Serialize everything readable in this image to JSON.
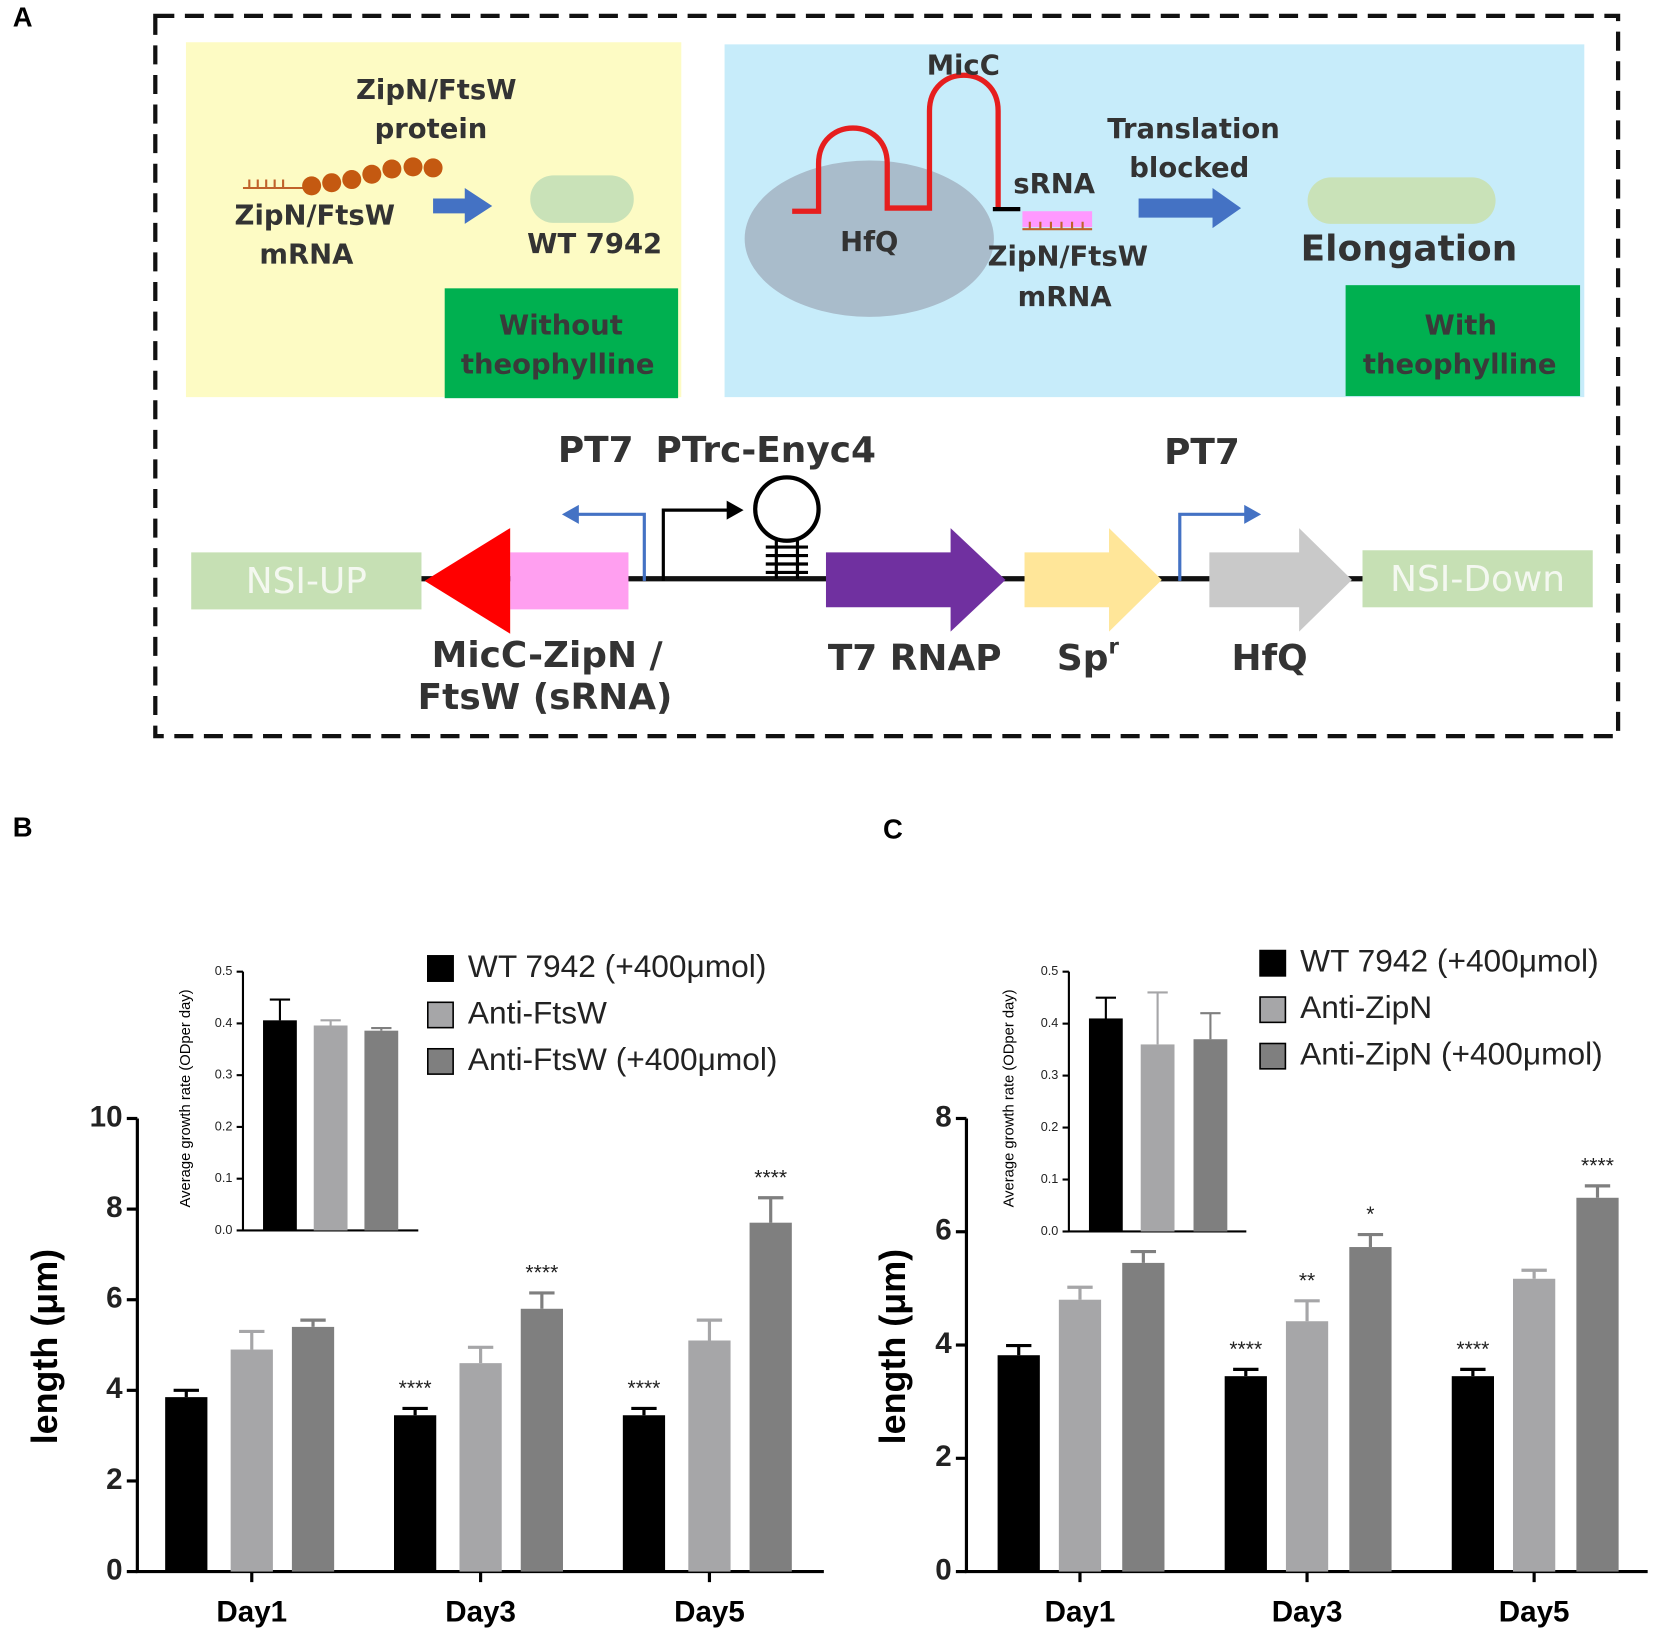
{
  "panel_labels": [
    "A",
    "B",
    "C"
  ],
  "diagram": {
    "left_box": {
      "protein_label": [
        "ZipN/FtsW",
        "protein"
      ],
      "mrna_label": [
        "ZipN/FtsW",
        "mRNA"
      ],
      "cell": "WT 7942",
      "condition": [
        "Without",
        "theophylline"
      ]
    },
    "right_box": {
      "srna_name": "MicC",
      "chaperone": "HfQ",
      "srna": "sRNA",
      "target": [
        "ZipN/FtsW",
        "mRNA"
      ],
      "effect": [
        "Translation",
        "blocked"
      ],
      "phenotype": "Elongation",
      "condition": [
        "With",
        "theophylline"
      ]
    },
    "construct": {
      "promoters": [
        "PT7",
        "PTrc-Enyc4",
        "PT7"
      ],
      "homology_arms": [
        "NSI-UP",
        "NSI-Down"
      ],
      "srna_gene": [
        "MicC-ZipN /",
        "FtsW (sRNA)"
      ],
      "polymerase": "T7 RNAP",
      "marker": "Sp",
      "marker_sup": "r",
      "chaperone": "HfQ"
    }
  },
  "chart_data": [
    {
      "type": "bar",
      "ylabel": "length (μm)",
      "categories": [
        "Day1",
        "Day3",
        "Day5"
      ],
      "ylim": [
        0,
        10
      ],
      "yticks": [
        0,
        2,
        4,
        6,
        8,
        10
      ],
      "series": [
        {
          "name": "WT 7942 (+400μmol)",
          "color": "#000000",
          "values": [
            3.85,
            3.45,
            3.45
          ],
          "errors": [
            0.15,
            0.15,
            0.15
          ],
          "annotations": [
            null,
            "****",
            "****"
          ]
        },
        {
          "name": "Anti-FtsW",
          "color": "#a6a6a8",
          "values": [
            4.9,
            4.6,
            5.1
          ],
          "errors": [
            0.4,
            0.35,
            0.45
          ]
        },
        {
          "name": "Anti-FtsW (+400μmol)",
          "color": "#7f7f7f",
          "values": [
            5.4,
            5.8,
            7.7
          ],
          "errors": [
            0.15,
            0.35,
            0.55
          ],
          "annotations": [
            null,
            "****",
            "****"
          ]
        }
      ]
    },
    {
      "type": "bar",
      "ylabel": "Average growth rate (ODper day)",
      "ylim": [
        0,
        0.5
      ],
      "yticks": [
        {
          "value": 0,
          "label": "0.0"
        },
        0.1,
        0.2,
        0.3,
        0.4,
        0.5
      ],
      "series": [
        {
          "color": "#000000",
          "values": [
            0.406
          ],
          "errors": [
            0.04
          ]
        },
        {
          "color": "#a6a6a8",
          "values": [
            0.396
          ],
          "errors": [
            0.01
          ]
        },
        {
          "color": "#7f7f7f",
          "values": [
            0.386
          ],
          "errors": [
            0.005
          ]
        }
      ]
    },
    {
      "type": "bar",
      "ylabel": "length (μm)",
      "categories": [
        "Day1",
        "Day3",
        "Day5"
      ],
      "ylim": [
        0,
        8
      ],
      "yticks": [
        0,
        2,
        4,
        6,
        8
      ],
      "series": [
        {
          "name": "WT 7942 (+400μmol)",
          "color": "#000000",
          "values": [
            3.82,
            3.45,
            3.45
          ],
          "errors": [
            0.17,
            0.12,
            0.12
          ],
          "annotations": [
            null,
            "****",
            "****"
          ]
        },
        {
          "name": "Anti-ZipN",
          "color": "#a6a6a8",
          "values": [
            4.8,
            4.42,
            5.17
          ],
          "errors": [
            0.22,
            0.36,
            0.15
          ],
          "annotations": [
            null,
            "**",
            null
          ]
        },
        {
          "name": "Anti-ZipN (+400μmol)",
          "color": "#7f7f7f",
          "values": [
            5.45,
            5.73,
            6.6
          ],
          "errors": [
            0.2,
            0.22,
            0.21
          ],
          "annotations": [
            null,
            "*",
            "****"
          ]
        }
      ]
    },
    {
      "type": "bar",
      "ylabel": "Average growth rate (ODper day)",
      "ylim": [
        0,
        0.5
      ],
      "yticks": [
        {
          "value": 0,
          "label": "0.0"
        },
        0.1,
        0.2,
        0.3,
        0.4,
        0.5
      ],
      "series": [
        {
          "color": "#000000",
          "values": [
            0.41
          ],
          "errors": [
            0.04
          ]
        },
        {
          "color": "#a6a6a8",
          "values": [
            0.36
          ],
          "errors": [
            0.1
          ]
        },
        {
          "color": "#7f7f7f",
          "values": [
            0.37
          ],
          "errors": [
            0.05
          ]
        }
      ]
    }
  ]
}
